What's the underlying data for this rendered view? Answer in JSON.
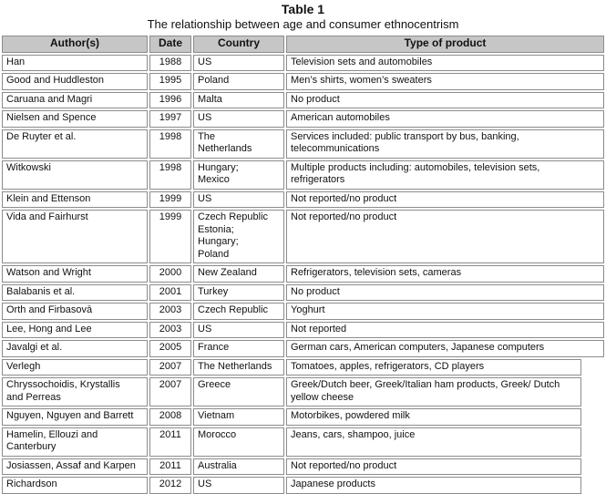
{
  "title": "Table 1",
  "subtitle": "The relationship between age and consumer ethnocentrism",
  "colors": {
    "border": "#8c8c8c",
    "header_bg": "#c6c6c6",
    "text": "#111111"
  },
  "table": {
    "headers": [
      "Author(s)",
      "Date",
      "Country",
      "Type of product"
    ],
    "rows": [
      {
        "author": "Han",
        "date": "1988",
        "country": "US",
        "product": "Television sets and automobiles",
        "narrow": false
      },
      {
        "author": "Good and Huddleston",
        "date": "1995",
        "country": "Poland",
        "product": "Men’s shirts, women’s sweaters",
        "narrow": false
      },
      {
        "author": "Caruana and Magri",
        "date": "1996",
        "country": "Malta",
        "product": "No product",
        "narrow": false
      },
      {
        "author": "Nielsen and Spence",
        "date": "1997",
        "country": "US",
        "product": "American automobiles",
        "narrow": false
      },
      {
        "author": "De Ruyter et al.",
        "date": "1998",
        "country": "The\nNetherlands",
        "product": "Services included: public transport by bus, banking,\ntelecommunications",
        "narrow": false
      },
      {
        "author": "Witkowski",
        "date": "1998",
        "country": "Hungary;\nMexico",
        "product": "Multiple products including: automobiles, television sets,\nrefrigerators",
        "narrow": false
      },
      {
        "author": "Klein and Ettenson",
        "date": "1999",
        "country": "US",
        "product": "Not reported/no product",
        "narrow": false
      },
      {
        "author": "Vida and Fairhurst",
        "date": "1999",
        "country": "Czech Republic\nEstonia;\nHungary;\nPoland",
        "product": "Not reported/no product",
        "narrow": false
      },
      {
        "author": "Watson and Wright",
        "date": "2000",
        "country": "New Zealand",
        "product": "Refrigerators, television sets, cameras",
        "narrow": false
      },
      {
        "author": "Balabanis et al.",
        "date": "2001",
        "country": "Turkey",
        "product": "No product",
        "narrow": false
      },
      {
        "author": "Orth and Firbasovā",
        "date": "2003",
        "country": "Czech Republic",
        "product": "Yoghurt",
        "narrow": false
      },
      {
        "author": "Lee, Hong and Lee",
        "date": "2003",
        "country": "US",
        "product": "Not reported",
        "narrow": false
      },
      {
        "author": "Javalgi et al.",
        "date": "2005",
        "country": "France",
        "product": "German cars, American computers, Japanese computers",
        "narrow": false
      },
      {
        "author": "Verlegh",
        "date": "2007",
        "country": "The Netherlands",
        "product": "Tomatoes, apples, refrigerators, CD players",
        "narrow": true
      },
      {
        "author": "Chryssochoidis, Krystallis\nand Perreas",
        "date": "2007",
        "country": "Greece",
        "product": "Greek/Dutch beer, Greek/Italian ham products, Greek/ Dutch\nyellow cheese",
        "narrow": true
      },
      {
        "author": "Nguyen, Nguyen and Barrett",
        "date": "2008",
        "country": "Vietnam",
        "product": "Motorbikes, powdered milk",
        "narrow": true
      },
      {
        "author": "Hamelin, Ellouzi and\nCanterbury",
        "date": "2011",
        "country": "Morocco",
        "product": "Jeans, cars, shampoo, juice",
        "narrow": true
      },
      {
        "author": "Josiassen, Assaf and Karpen",
        "date": "2011",
        "country": "Australia",
        "product": "Not reported/no product",
        "narrow": true
      },
      {
        "author": "Richardson",
        "date": "2012",
        "country": "US",
        "product": "Japanese products",
        "narrow": true
      }
    ]
  }
}
